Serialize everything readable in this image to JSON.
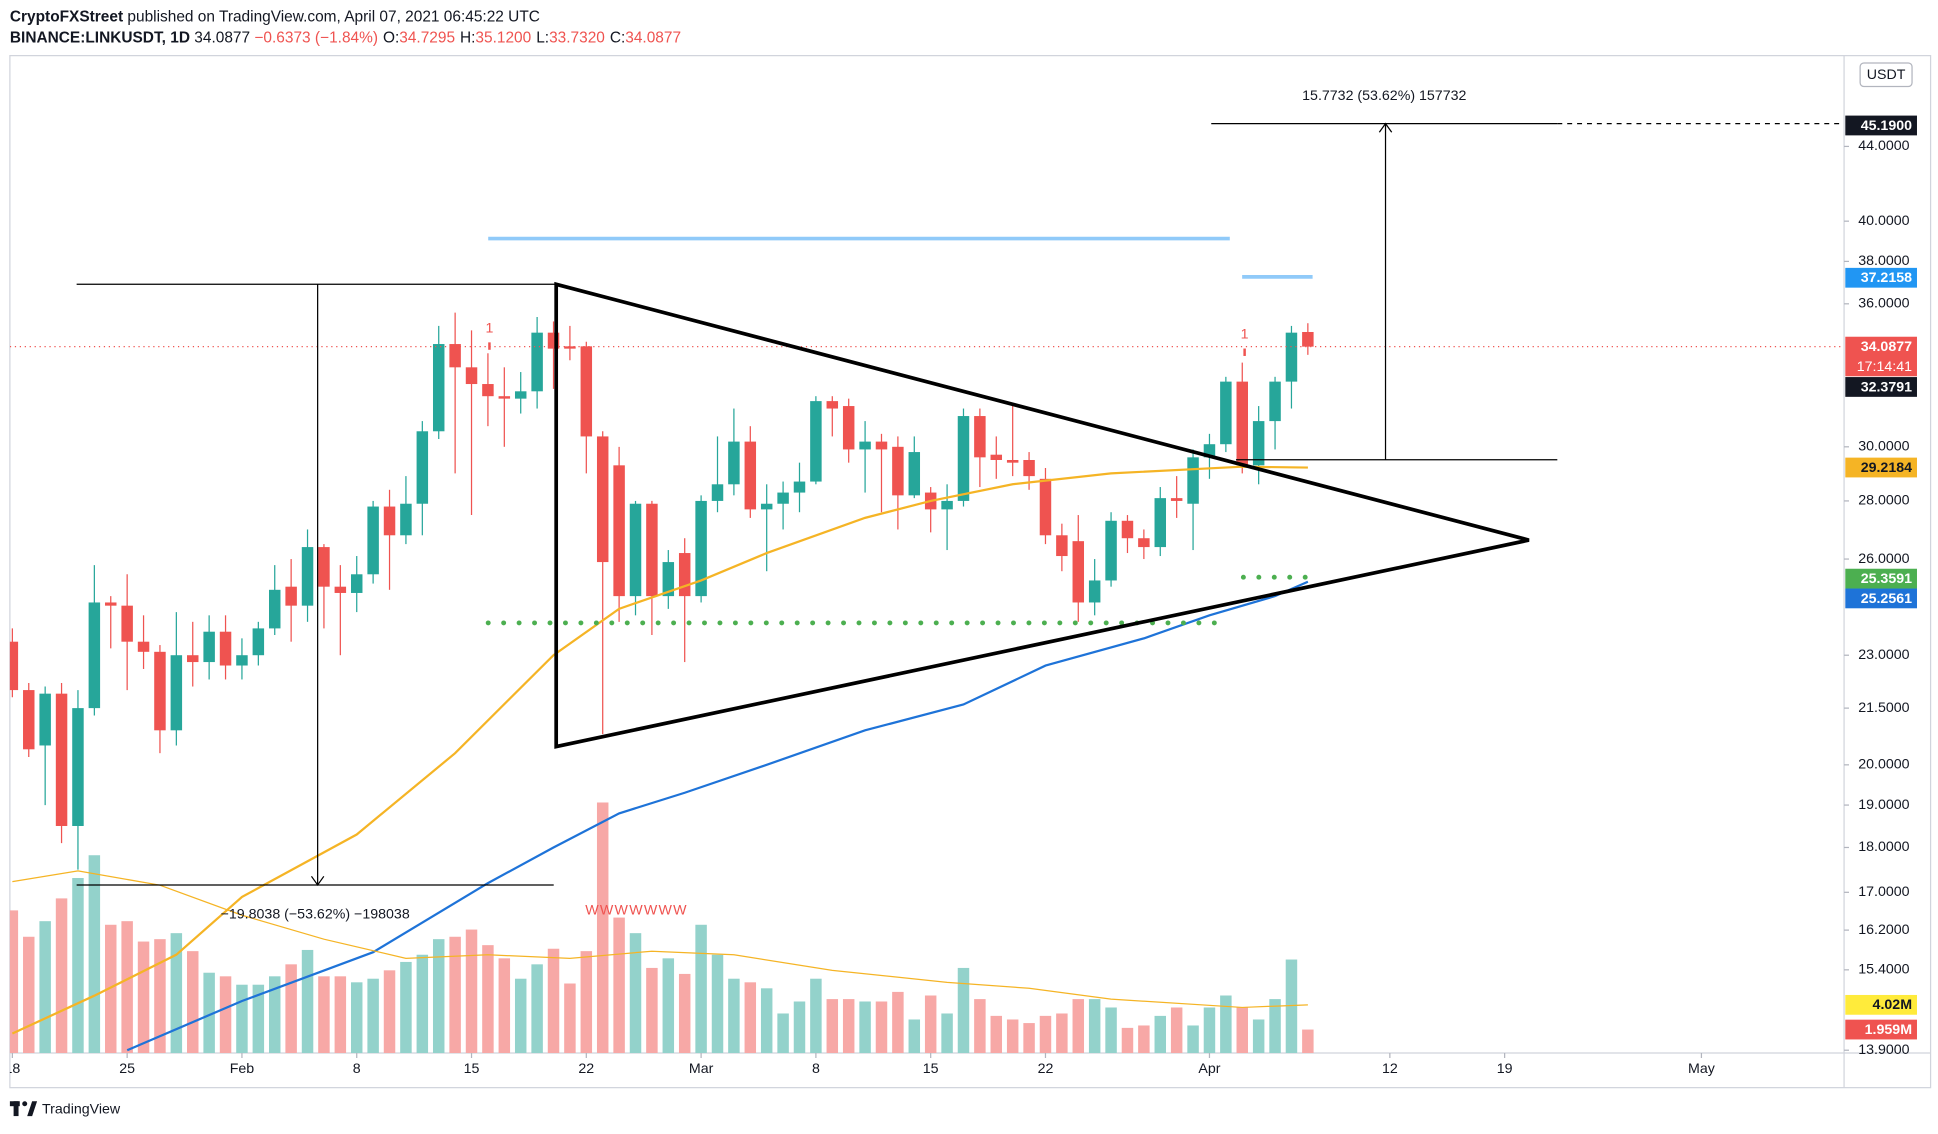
{
  "header": {
    "publisher": "CryptoFXStreet",
    "published": "published on TradingView.com, April 07, 2021 06:45:22 UTC",
    "symbol": "BINANCE:LINKUSDT, 1D",
    "last": "34.0877",
    "change": "−0.6373 (−1.84%)",
    "ohlc": [
      {
        "key": "O:",
        "value": "34.7295"
      },
      {
        "key": "H:",
        "value": "35.1200"
      },
      {
        "key": "L:",
        "value": "33.7320"
      },
      {
        "key": "C:",
        "value": "34.0877"
      }
    ]
  },
  "footer": {
    "brand": "TradingView"
  },
  "chart_data": {
    "type": "candlestick",
    "log_scale": true,
    "currency": "USDT",
    "up_color": "#26a69a",
    "down_color": "#ef5350",
    "volume_up_color": "#93d2cb",
    "volume_down_color": "#f7a8a6",
    "x": [
      "2021-01-18",
      "2021-01-19",
      "2021-01-20",
      "2021-01-21",
      "2021-01-22",
      "2021-01-23",
      "2021-01-24",
      "2021-01-25",
      "2021-01-26",
      "2021-01-27",
      "2021-01-28",
      "2021-01-29",
      "2021-01-30",
      "2021-01-31",
      "2021-02-01",
      "2021-02-02",
      "2021-02-03",
      "2021-02-04",
      "2021-02-05",
      "2021-02-06",
      "2021-02-07",
      "2021-02-08",
      "2021-02-09",
      "2021-02-10",
      "2021-02-11",
      "2021-02-12",
      "2021-02-13",
      "2021-02-14",
      "2021-02-15",
      "2021-02-16",
      "2021-02-17",
      "2021-02-18",
      "2021-02-19",
      "2021-02-20",
      "2021-02-21",
      "2021-02-22",
      "2021-02-23",
      "2021-02-24",
      "2021-02-25",
      "2021-02-26",
      "2021-02-27",
      "2021-02-28",
      "2021-03-01",
      "2021-03-02",
      "2021-03-03",
      "2021-03-04",
      "2021-03-05",
      "2021-03-06",
      "2021-03-07",
      "2021-03-08",
      "2021-03-09",
      "2021-03-10",
      "2021-03-11",
      "2021-03-12",
      "2021-03-13",
      "2021-03-14",
      "2021-03-15",
      "2021-03-16",
      "2021-03-17",
      "2021-03-18",
      "2021-03-19",
      "2021-03-20",
      "2021-03-21",
      "2021-03-22",
      "2021-03-23",
      "2021-03-24",
      "2021-03-25",
      "2021-03-26",
      "2021-03-27",
      "2021-03-28",
      "2021-03-29",
      "2021-03-30",
      "2021-03-31",
      "2021-04-01",
      "2021-04-02",
      "2021-04-03",
      "2021-04-04",
      "2021-04-05",
      "2021-04-06",
      "2021-04-07"
    ],
    "open": [
      23.4,
      22.0,
      20.5,
      21.9,
      18.5,
      21.5,
      24.6,
      24.5,
      23.4,
      23.1,
      20.9,
      23.0,
      22.8,
      23.7,
      22.7,
      23.0,
      23.8,
      25.1,
      24.5,
      26.4,
      25.1,
      24.9,
      25.5,
      27.8,
      26.8,
      27.9,
      30.6,
      34.2,
      33.2,
      32.5,
      32.0,
      31.9,
      32.2,
      34.7,
      34.1,
      34.1,
      30.4,
      29.3,
      24.8,
      27.9,
      24.8,
      26.2,
      24.8,
      28.0,
      28.6,
      30.2,
      27.7,
      27.9,
      28.3,
      28.7,
      31.8,
      31.6,
      29.9,
      30.2,
      30.0,
      28.2,
      28.3,
      27.7,
      28.0,
      31.2,
      29.7,
      29.5,
      29.5,
      28.8,
      26.8,
      26.6,
      24.6,
      25.3,
      27.3,
      26.7,
      26.4,
      28.1,
      27.9,
      29.6,
      30.1,
      32.6,
      29.3,
      31.0,
      32.6,
      34.7295
    ],
    "high": [
      23.8,
      22.2,
      22.1,
      22.2,
      22.0,
      25.8,
      24.8,
      25.5,
      24.2,
      23.3,
      24.3,
      24.0,
      24.2,
      24.2,
      23.5,
      24.0,
      25.8,
      26.0,
      27.0,
      26.5,
      25.8,
      26.1,
      28.0,
      28.4,
      28.9,
      31.0,
      35.0,
      35.6,
      34.8,
      33.8,
      33.2,
      33.0,
      35.4,
      35.2,
      35.0,
      34.3,
      30.6,
      30.0,
      28.0,
      28.0,
      26.3,
      26.7,
      28.2,
      30.4,
      31.5,
      30.8,
      28.6,
      28.7,
      29.4,
      32.0,
      32.0,
      31.9,
      31.0,
      30.5,
      30.4,
      30.4,
      28.5,
      28.6,
      31.5,
      31.5,
      30.4,
      31.7,
      29.8,
      29.2,
      27.2,
      27.5,
      26.0,
      27.6,
      27.5,
      27.0,
      28.5,
      28.9,
      29.9,
      30.5,
      32.8,
      33.4,
      31.6,
      32.8,
      35.0,
      35.12
    ],
    "low": [
      21.8,
      20.2,
      19.0,
      18.1,
      17.5,
      21.3,
      23.2,
      22.0,
      22.6,
      20.3,
      20.5,
      22.1,
      22.3,
      22.3,
      22.3,
      22.7,
      23.6,
      23.4,
      24.0,
      23.8,
      23.0,
      24.3,
      25.2,
      25.0,
      26.5,
      26.8,
      30.3,
      29.0,
      27.5,
      30.8,
      30.0,
      31.3,
      31.5,
      32.3,
      33.5,
      29.0,
      20.8,
      24.0,
      24.2,
      23.6,
      24.4,
      22.8,
      24.6,
      27.6,
      28.2,
      27.4,
      25.6,
      27.0,
      27.6,
      28.6,
      30.4,
      29.4,
      28.3,
      27.6,
      27.0,
      28.1,
      26.9,
      26.3,
      27.8,
      28.5,
      28.8,
      28.9,
      28.4,
      26.5,
      25.6,
      24.0,
      24.2,
      25.1,
      26.2,
      26.0,
      26.1,
      27.4,
      26.3,
      28.8,
      29.8,
      29.0,
      28.6,
      29.9,
      31.5,
      33.732
    ],
    "close": [
      22.0,
      20.4,
      21.9,
      18.5,
      21.5,
      24.6,
      24.5,
      23.4,
      23.1,
      20.9,
      23.0,
      22.8,
      23.7,
      22.7,
      23.0,
      23.8,
      25.0,
      24.5,
      26.4,
      25.1,
      24.9,
      25.5,
      27.8,
      26.8,
      27.9,
      30.6,
      34.2,
      33.2,
      32.5,
      32.0,
      31.9,
      32.2,
      34.7,
      34.0,
      34.0,
      30.4,
      25.9,
      24.8,
      27.9,
      24.8,
      25.9,
      24.8,
      28.0,
      28.6,
      30.2,
      27.7,
      27.9,
      28.3,
      28.7,
      31.8,
      31.5,
      29.9,
      30.2,
      29.9,
      28.2,
      29.8,
      27.7,
      28.0,
      31.2,
      29.6,
      29.5,
      29.4,
      28.9,
      26.8,
      26.1,
      24.6,
      25.3,
      27.3,
      26.7,
      26.4,
      28.1,
      28.0,
      29.6,
      30.1,
      32.6,
      29.3,
      31.0,
      32.6,
      34.7,
      34.0877
    ],
    "volume": [
      11.9,
      9.7,
      11.0,
      12.9,
      14.6,
      16.5,
      10.7,
      11.0,
      9.3,
      9.5,
      10.0,
      8.5,
      6.7,
      6.4,
      5.7,
      5.7,
      6.4,
      7.4,
      8.6,
      6.4,
      6.4,
      5.9,
      6.2,
      6.9,
      7.6,
      8.2,
      9.5,
      9.7,
      10.3,
      9.0,
      7.9,
      6.2,
      7.4,
      8.7,
      5.8,
      8.5,
      20.9,
      11.3,
      10.0,
      7.1,
      7.9,
      6.6,
      10.7,
      8.2,
      6.2,
      5.9,
      5.4,
      3.3,
      4.3,
      6.2,
      4.5,
      4.5,
      4.3,
      4.3,
      5.1,
      2.8,
      4.8,
      3.3,
      7.1,
      4.5,
      3.1,
      2.8,
      2.5,
      3.1,
      3.3,
      4.5,
      4.5,
      3.8,
      2.1,
      2.3,
      3.1,
      3.8,
      2.3,
      3.8,
      4.8,
      3.8,
      2.8,
      4.5,
      7.8,
      1.959
    ],
    "xlim": [
      "2021-01-18",
      "2021-05-10"
    ],
    "ylim": [
      13.85,
      49.4
    ],
    "vlim": [
      0,
      83.2
    ],
    "xticks": [
      {
        "value": "2021-01-18",
        "label": "18"
      },
      {
        "value": "2021-01-25",
        "label": "25"
      },
      {
        "value": "2021-02-01",
        "label": "Feb"
      },
      {
        "value": "2021-02-08",
        "label": "8"
      },
      {
        "value": "2021-02-15",
        "label": "15"
      },
      {
        "value": "2021-02-22",
        "label": "22"
      },
      {
        "value": "2021-03-01",
        "label": "Mar"
      },
      {
        "value": "2021-03-08",
        "label": "8"
      },
      {
        "value": "2021-03-15",
        "label": "15"
      },
      {
        "value": "2021-03-22",
        "label": "22"
      },
      {
        "value": "2021-04-01",
        "label": "Apr"
      },
      {
        "value": "2021-04-12",
        "label": "12"
      },
      {
        "value": "2021-04-19",
        "label": "19"
      },
      {
        "value": "2021-05-01",
        "label": "May"
      }
    ],
    "yticks": [
      {
        "value": 13.9,
        "label": "13.9000"
      },
      {
        "value": 15.4,
        "label": "15.4000"
      },
      {
        "value": 16.2,
        "label": "16.2000"
      },
      {
        "value": 17,
        "label": "17.0000"
      },
      {
        "value": 18,
        "label": "18.0000"
      },
      {
        "value": 19,
        "label": "19.0000"
      },
      {
        "value": 20,
        "label": "20.0000"
      },
      {
        "value": 21.5,
        "label": "21.5000"
      },
      {
        "value": 23,
        "label": "23.0000"
      },
      {
        "value": 26,
        "label": "26.0000"
      },
      {
        "value": 28,
        "label": "28.0000"
      },
      {
        "value": 30,
        "label": "30.0000"
      },
      {
        "value": 36,
        "label": "36.0000"
      },
      {
        "value": 38,
        "label": "38.0000"
      },
      {
        "value": 40,
        "label": "40.0000"
      },
      {
        "value": 44,
        "label": "44.0000"
      }
    ],
    "overlays": [
      {
        "color": "#f5b425",
        "x": [
          "2021-01-18",
          "2021-01-23",
          "2021-01-28",
          "2021-02-01",
          "2021-02-08",
          "2021-02-14",
          "2021-02-20",
          "2021-02-24",
          "2021-03-01",
          "2021-03-05",
          "2021-03-11",
          "2021-03-15",
          "2021-03-20",
          "2021-03-26",
          "2021-04-03",
          "2021-04-07"
        ],
        "values": [
          14.2,
          14.9,
          15.7,
          16.9,
          18.3,
          20.3,
          23.0,
          24.4,
          25.3,
          26.2,
          27.4,
          28.0,
          28.6,
          29.0,
          29.25,
          29.2184
        ]
      },
      {
        "color": "#1e73d8",
        "x": [
          "2021-01-25",
          "2021-02-01",
          "2021-02-09",
          "2021-02-16",
          "2021-02-20",
          "2021-02-24",
          "2021-02-28",
          "2021-03-05",
          "2021-03-11",
          "2021-03-17",
          "2021-03-22",
          "2021-03-28",
          "2021-04-01",
          "2021-04-05",
          "2021-04-07"
        ],
        "values": [
          13.9,
          14.8,
          15.75,
          17.2,
          18.0,
          18.8,
          19.3,
          20.0,
          20.9,
          21.6,
          22.7,
          23.5,
          24.2,
          24.8,
          25.2561
        ]
      },
      {
        "color": "#f5b425",
        "axis": "volume",
        "x": [
          "2021-01-18",
          "2021-01-22",
          "2021-01-27",
          "2021-02-01",
          "2021-02-06",
          "2021-02-11",
          "2021-02-16",
          "2021-02-21",
          "2021-02-26",
          "2021-03-03",
          "2021-03-09",
          "2021-03-16",
          "2021-03-21",
          "2021-03-26",
          "2021-04-03",
          "2021-04-07"
        ],
        "values": [
          14.3,
          15.2,
          14.0,
          11.5,
          9.5,
          7.9,
          8.2,
          7.9,
          8.5,
          8.2,
          6.9,
          5.9,
          5.4,
          4.5,
          3.8,
          4.02
        ]
      }
    ],
    "price_labels": [
      {
        "value": 45.19,
        "label": "45.1900",
        "color": "#131722",
        "text_color": "#ffffff"
      },
      {
        "value": 37.2158,
        "label": "37.2158",
        "color": "#2196f3",
        "text_color": "#ffffff"
      },
      {
        "value": 34.0877,
        "label": "34.0877",
        "color": "#ef5350",
        "text_color": "#ffffff",
        "countdown": "17:14:41"
      },
      {
        "value": 32.3791,
        "label": "32.3791",
        "color": "#131722",
        "text_color": "#ffffff"
      },
      {
        "value": 29.2184,
        "label": "29.2184",
        "color": "#f5b425",
        "text_color": "#131722"
      },
      {
        "value": 25.3591,
        "label": "25.3591",
        "color": "#4caf50",
        "text_color": "#ffffff"
      },
      {
        "value": 25.2561,
        "label": "25.2561",
        "color": "#1e73d8",
        "text_color": "#ffffff"
      }
    ],
    "volume_labels": [
      {
        "value": 4.02,
        "label": "4.02M",
        "color": "#ffeb3b",
        "text_color": "#131722"
      },
      {
        "value": 1.959,
        "label": "1.959M",
        "color": "#ef5350",
        "text_color": "#ffffff"
      }
    ],
    "annotations": {
      "measure_up": "15.7732 (53.62%) 157732",
      "measure_down": "−19.8038 (−53.62%) −198038",
      "pattern": "WWWWWWW",
      "markers": [
        "1",
        "1"
      ]
    }
  }
}
